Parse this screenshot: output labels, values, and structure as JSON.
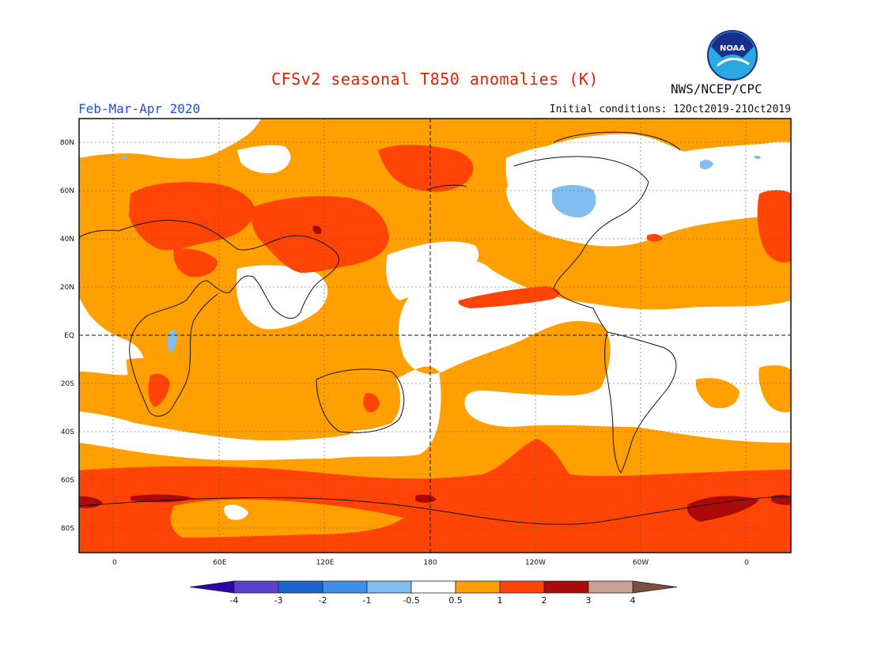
{
  "title": "CFSv2 seasonal T850 anomalies (K)",
  "period": "Feb-Mar-Apr 2020",
  "initial_conditions": "Initial conditions: 12Oct2019-21Oct2019",
  "organization": "NWS/NCEP/CPC",
  "logo_text": "NOAA",
  "colors": {
    "title": "#dd2200",
    "period": "#1c4fd8",
    "land_outline": "#111111"
  },
  "map": {
    "lat_labels": [
      "80N",
      "60N",
      "40N",
      "20N",
      "EQ",
      "20S",
      "40S",
      "60S",
      "80S"
    ],
    "lon_labels": [
      "0",
      "60E",
      "120E",
      "180",
      "120W",
      "60W",
      "0"
    ]
  },
  "legend": {
    "ticks": [
      "-4",
      "-3",
      "-2",
      "-1",
      "-0.5",
      "0.5",
      "1",
      "2",
      "3",
      "4"
    ],
    "colors": [
      "#2a08a8",
      "#5a3fd0",
      "#1f63d3",
      "#3d8fe6",
      "#82bdf0",
      "#ffffff",
      "#ffa000",
      "#ff4406",
      "#aa0a0a",
      "#c7a195",
      "#7a4f3c"
    ]
  }
}
